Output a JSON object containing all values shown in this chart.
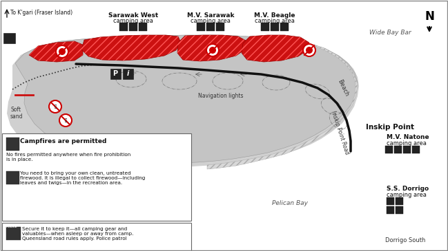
{
  "bg_outer": "#e8e8e8",
  "land_color": "#c8c8c8",
  "land_dark": "#b0b0b0",
  "red_color": "#cc1111",
  "road_color": "#111111",
  "water_label_color": "#666666",
  "text_color": "#111111",
  "labels": {
    "fraser": "To K'gari (Fraser Island)",
    "wide_bay": "Wide Bay Bar",
    "beach": "Beach",
    "nav_lights": "Navigation lights",
    "soft_sand": "Soft\nsand",
    "pelican_bay": "Pelican Bay",
    "inskip_road": "Inskip Point Road",
    "inskip_point": "Inskip Point",
    "sarawak_west_bold": "Sarawak West",
    "sarawak_west": "camping area",
    "mv_sarawak_bold": "M.V. Sarawak",
    "mv_sarawak": "camping area",
    "mv_beagle_bold": "M.V. Beagle",
    "mv_beagle": "camping area",
    "mv_natone_bold": "M.V. Natone",
    "mv_natone": "camping area",
    "ss_dorrigo_bold": "S.S. Dorrigo",
    "ss_dorrigo": "camping area",
    "dorrigo_south": "Dorrigo South"
  },
  "legend_campfire_title": "Campfires are permitted",
  "legend_campfire_text1": "No fires permitted anywhere when fire prohibition\nis in place.",
  "legend_campfire_text2": "You need to bring your own clean, untreated\nfirewood. It is illegal to collect firewood—including\nleaves and twigs—in the recreation area.",
  "legend_police_text": "Secure it to keep it—all camping gear and\nvaluables—when asleep or away from camp.\nQueensland road rules apply. Police patrol"
}
